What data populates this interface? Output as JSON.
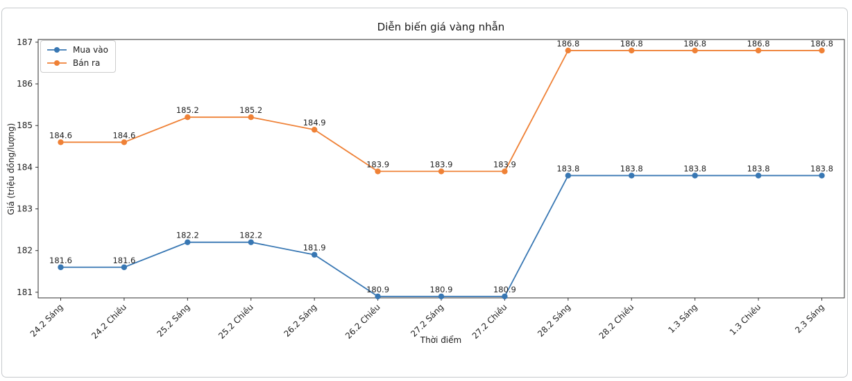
{
  "figure": {
    "title": "Diễn biến giá vàng nhẫn",
    "xlabel": "Thời điểm",
    "ylabel": "Giá (triệu đồng/lượng)"
  },
  "chart_data": {
    "type": "line",
    "title": "Diễn biến giá vàng nhẫn",
    "xlabel": "Thời điểm",
    "ylabel": "Giá (triệu đồng/lượng)",
    "categories": [
      "24.2 Sáng",
      "24.2 Chiều",
      "25.2 Sáng",
      "25.2 Chiều",
      "26.2 Sáng",
      "26.2 Chiều",
      "27.2 Sáng",
      "27.2 Chiều",
      "28.2 Sáng",
      "28.2 Chiều",
      "1.3 Sáng",
      "1.3 Chiều",
      "2.3 Sáng"
    ],
    "series": [
      {
        "name": "Mua vào",
        "color": "#3877b3",
        "values": [
          181.6,
          181.6,
          182.2,
          182.2,
          181.9,
          180.9,
          180.9,
          180.9,
          183.8,
          183.8,
          183.8,
          183.8,
          183.8
        ]
      },
      {
        "name": "Bán ra",
        "color": "#ef8136",
        "values": [
          184.6,
          184.6,
          185.2,
          185.2,
          184.9,
          183.9,
          183.9,
          183.9,
          186.8,
          186.8,
          186.8,
          186.8,
          186.8
        ]
      }
    ],
    "ylim": [
      180.865,
      187.065
    ],
    "yticks": [
      181,
      182,
      183,
      184,
      185,
      186,
      187
    ],
    "grid": false,
    "legend_position": "upper-left",
    "point_labels": true,
    "marker": "circle"
  }
}
